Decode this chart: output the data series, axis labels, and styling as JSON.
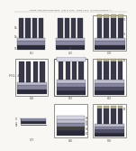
{
  "bg_color": "#f0eeeb",
  "page_bg": "#f8f7f4",
  "header_text": "Patent Application Publication   May 8, 2012   Sheet 1 of 9   US 2012/0108041 A1",
  "text_color": "#555555",
  "dark_color": "#2a2a3a",
  "mid_dark": "#505068",
  "mid_color": "#8888a0",
  "light_color": "#c0c0d0",
  "very_light": "#d8d8e4",
  "white": "#ffffff",
  "bump_dark": "#383848",
  "bump_light": "#606075",
  "layer_tan": "#b8b090",
  "layer_gray": "#909090",
  "border_color": "#666666",
  "fig_label_size": 2.8,
  "anno_size": 1.8,
  "header_size": 1.6
}
